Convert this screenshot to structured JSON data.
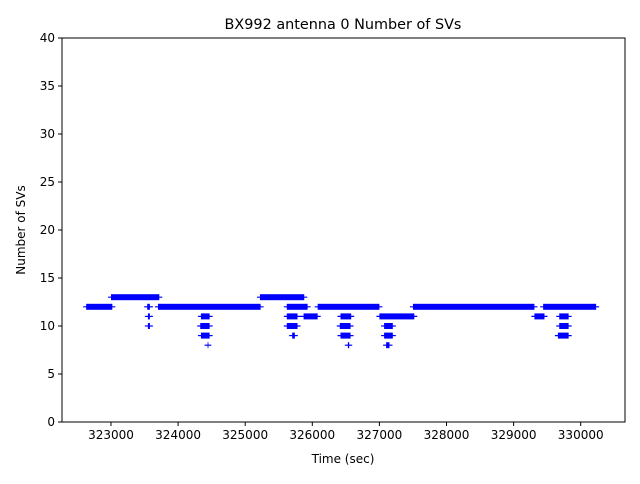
{
  "chart_data": {
    "type": "scatter",
    "title": "BX992 antenna 0 Number of SVs",
    "xlabel": "Time (sec)",
    "ylabel": "Number of SVs",
    "xlim": [
      322270,
      330660
    ],
    "ylim": [
      0,
      40
    ],
    "x_ticks": [
      323000,
      324000,
      325000,
      326000,
      327000,
      328000,
      329000,
      330000
    ],
    "x_tick_labels": [
      "323000",
      "324000",
      "325000",
      "326000",
      "327000",
      "328000",
      "329000",
      "330000"
    ],
    "y_ticks": [
      0,
      5,
      10,
      15,
      20,
      25,
      30,
      35,
      40
    ],
    "y_tick_labels": [
      "0",
      "5",
      "10",
      "15",
      "20",
      "25",
      "30",
      "35",
      "40"
    ],
    "marker": "+",
    "color": "#0000ff",
    "grid": false,
    "segments": [
      {
        "x_start": 322630,
        "x_end": 323020,
        "y": 12
      },
      {
        "x_start": 323000,
        "x_end": 323720,
        "y": 13
      },
      {
        "x_start": 323540,
        "x_end": 323580,
        "y": 12
      },
      {
        "x_start": 323550,
        "x_end": 323580,
        "y": 11
      },
      {
        "x_start": 323550,
        "x_end": 323580,
        "y": 10
      },
      {
        "x_start": 323700,
        "x_end": 325230,
        "y": 12
      },
      {
        "x_start": 324340,
        "x_end": 324470,
        "y": 11
      },
      {
        "x_start": 324330,
        "x_end": 324470,
        "y": 10
      },
      {
        "x_start": 324340,
        "x_end": 324470,
        "y": 9
      },
      {
        "x_start": 324440,
        "x_end": 324450,
        "y": 8
      },
      {
        "x_start": 325220,
        "x_end": 325880,
        "y": 13
      },
      {
        "x_start": 325620,
        "x_end": 325930,
        "y": 12
      },
      {
        "x_start": 325620,
        "x_end": 325780,
        "y": 11
      },
      {
        "x_start": 325620,
        "x_end": 325780,
        "y": 10
      },
      {
        "x_start": 325700,
        "x_end": 325740,
        "y": 9
      },
      {
        "x_start": 325870,
        "x_end": 326080,
        "y": 11
      },
      {
        "x_start": 326080,
        "x_end": 327000,
        "y": 12
      },
      {
        "x_start": 326420,
        "x_end": 326580,
        "y": 11
      },
      {
        "x_start": 326410,
        "x_end": 326570,
        "y": 10
      },
      {
        "x_start": 326420,
        "x_end": 326570,
        "y": 9
      },
      {
        "x_start": 326530,
        "x_end": 326550,
        "y": 8
      },
      {
        "x_start": 327000,
        "x_end": 327520,
        "y": 11
      },
      {
        "x_start": 327070,
        "x_end": 327200,
        "y": 10
      },
      {
        "x_start": 327070,
        "x_end": 327200,
        "y": 9
      },
      {
        "x_start": 327100,
        "x_end": 327150,
        "y": 8
      },
      {
        "x_start": 327500,
        "x_end": 329310,
        "y": 12
      },
      {
        "x_start": 329310,
        "x_end": 329460,
        "y": 11
      },
      {
        "x_start": 329440,
        "x_end": 330230,
        "y": 12
      },
      {
        "x_start": 329680,
        "x_end": 329820,
        "y": 11
      },
      {
        "x_start": 329680,
        "x_end": 329820,
        "y": 10
      },
      {
        "x_start": 329660,
        "x_end": 329820,
        "y": 9
      }
    ]
  }
}
